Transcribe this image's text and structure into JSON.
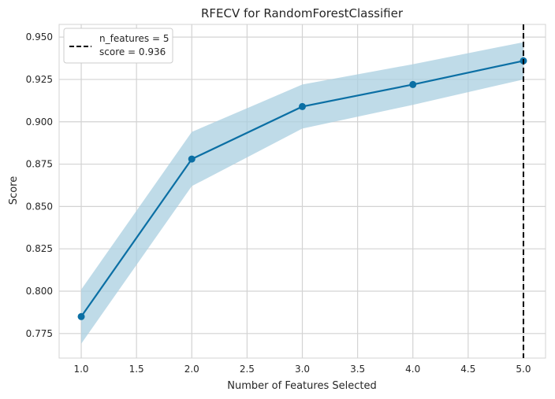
{
  "chart_data": {
    "type": "line",
    "title": "RFECV for RandomForestClassifier",
    "xlabel": "Number of Features Selected",
    "ylabel": "Score",
    "xlim": [
      0.8,
      5.2
    ],
    "ylim": [
      0.7605,
      0.9575
    ],
    "xticks": [
      "1.0",
      "1.5",
      "2.0",
      "2.5",
      "3.0",
      "3.5",
      "4.0",
      "4.5",
      "5.0"
    ],
    "yticks": [
      "0.775",
      "0.800",
      "0.825",
      "0.850",
      "0.875",
      "0.900",
      "0.925",
      "0.950"
    ],
    "grid": true,
    "legend_position": "top-left",
    "colors": {
      "line": "#0b6fa4",
      "band": "#a9cfe0",
      "selection": "#000000",
      "grid": "#d3d3d3"
    },
    "series": [
      {
        "x": [
          1,
          2,
          3,
          4,
          5
        ],
        "y": [
          0.785,
          0.878,
          0.909,
          0.922,
          0.936
        ],
        "y_upper": [
          0.801,
          0.894,
          0.922,
          0.934,
          0.947
        ],
        "y_lower": [
          0.769,
          0.862,
          0.896,
          0.91,
          0.925
        ]
      }
    ],
    "selected_n_features": 5,
    "legend": {
      "line1": "n_features = 5",
      "line2": "score = 0.936"
    }
  }
}
